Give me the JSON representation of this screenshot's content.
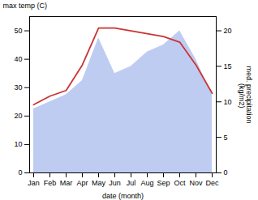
{
  "chart_data": {
    "type": "line",
    "xlabel": "date (month)",
    "ylabel": "max temp (C)",
    "y2label": "med. precipitation\n (kg/m2)",
    "categories": [
      "Jan",
      "Feb",
      "Mar",
      "Apr",
      "May",
      "Jun",
      "Jul",
      "Aug",
      "Sep",
      "Oct",
      "Nov",
      "Dec"
    ],
    "series": [
      {
        "type": "area",
        "axis": "y2",
        "color": "#aabbee",
        "values": [
          9,
          10,
          11,
          13,
          19,
          14,
          15,
          17,
          18,
          20,
          16,
          11
        ]
      },
      {
        "type": "line",
        "color": "#cc3333",
        "values": [
          24,
          27,
          29,
          38,
          51,
          51,
          50,
          49,
          48,
          46,
          38,
          28
        ]
      }
    ],
    "ylim": [
      0,
      55
    ],
    "yticks": [
      0,
      10,
      20,
      30,
      40,
      50
    ],
    "y2lim": [
      0,
      22
    ],
    "y2ticks": [
      0,
      5,
      10,
      15,
      20
    ],
    "grid": false
  }
}
